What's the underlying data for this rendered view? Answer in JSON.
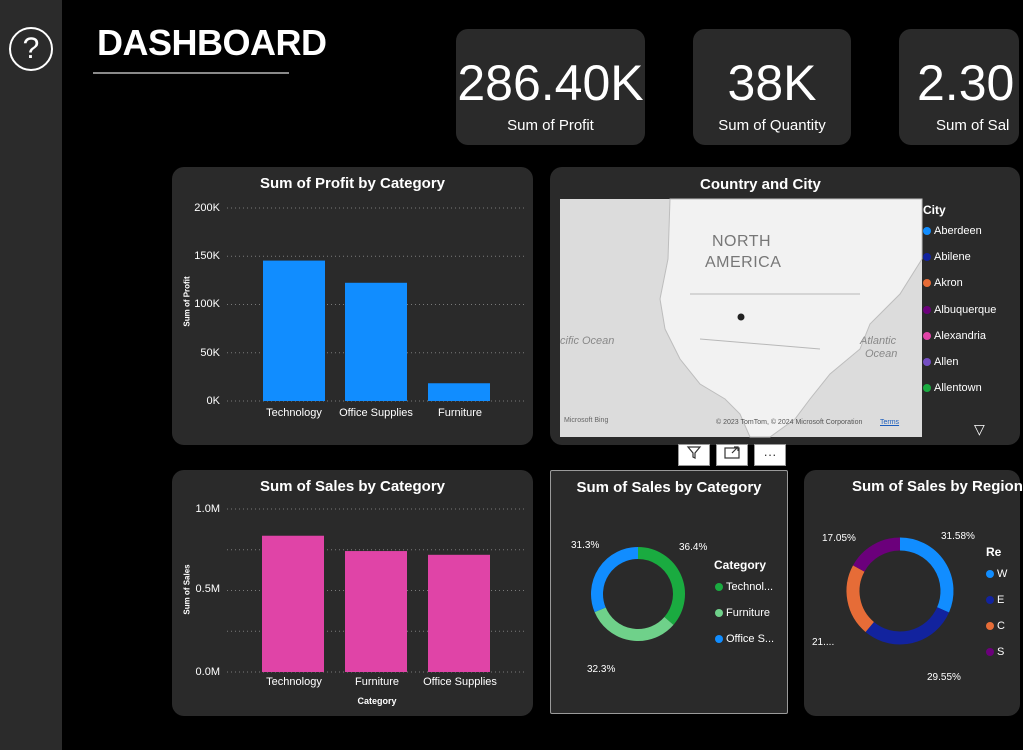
{
  "page": {
    "title": "DASHBOARD"
  },
  "help_icon": "question-mark-icon",
  "kpis": [
    {
      "value": "286.40K",
      "label": "Sum of Profit"
    },
    {
      "value": "38K",
      "label": "Sum of Quantity"
    },
    {
      "value": "2.30",
      "label": "Sum of Sal"
    }
  ],
  "profit_chart": {
    "title": "Sum of Profit by Category",
    "ylabel": "Sum of Profit",
    "ticks": [
      "200K",
      "150K",
      "100K",
      "50K",
      "0K"
    ],
    "chart_data": {
      "type": "bar",
      "categories": [
        "Technology",
        "Office Supplies",
        "Furniture"
      ],
      "values": [
        145500,
        122500,
        18400
      ],
      "ylabel": "Sum of Profit",
      "ylim": [
        0,
        200000
      ],
      "color": "#118DFF"
    }
  },
  "sales_chart": {
    "title": "Sum of Sales by Category",
    "ylabel": "Sum of Sales",
    "xlabel": "Category",
    "ticks": [
      "1.0M",
      "0.5M",
      "0.0M"
    ],
    "chart_data": {
      "type": "bar",
      "categories": [
        "Technology",
        "Furniture",
        "Office Supplies"
      ],
      "values": [
        836000,
        742000,
        719000
      ],
      "ylabel": "Sum of Sales",
      "xlabel": "Category",
      "ylim": [
        0,
        1000000
      ],
      "color": "#E044A7"
    }
  },
  "map_panel": {
    "title": "Country and City",
    "continent_line1": "NORTH",
    "continent_line2": "AMERICA",
    "ocean_left": "cific Ocean",
    "ocean_right_1": "Atlantic",
    "ocean_right_2": "Ocean",
    "bing": "Microsoft Bing",
    "copyright": "© 2023 TomTom, © 2024 Microsoft Corporation",
    "terms": "Terms",
    "legend_title": "City",
    "legend": [
      {
        "name": "Aberdeen",
        "color": "#118DFF"
      },
      {
        "name": "Abilene",
        "color": "#12239E"
      },
      {
        "name": "Akron",
        "color": "#E66C37"
      },
      {
        "name": "Albuquerque",
        "color": "#6B007B"
      },
      {
        "name": "Alexandria",
        "color": "#E044A7"
      },
      {
        "name": "Allen",
        "color": "#744EC2"
      },
      {
        "name": "Allentown",
        "color": "#1AAB40"
      }
    ]
  },
  "donut_category": {
    "title": "Sum of Sales by Category",
    "legend_title": "Category",
    "legend": [
      {
        "name": "Technol...",
        "color": "#1AAB40"
      },
      {
        "name": "Furniture",
        "color": "#6FD18A"
      },
      {
        "name": "Office S...",
        "color": "#118DFF"
      }
    ],
    "labels": [
      "36.4%",
      "32.3%",
      "31.3%"
    ],
    "chart_data": {
      "type": "pie",
      "categories": [
        "Technology",
        "Furniture",
        "Office Supplies"
      ],
      "values": [
        36.4,
        32.3,
        31.3
      ],
      "colors": [
        "#1AAB40",
        "#6FD18A",
        "#118DFF"
      ]
    }
  },
  "donut_region": {
    "title": "Sum of Sales by Region",
    "legend_title": "Re",
    "legend_initials": [
      "W",
      "E",
      "C",
      "S"
    ],
    "labels": [
      "31.58%",
      "29.55%",
      "21....",
      "17.05%"
    ],
    "chart_data": {
      "type": "pie",
      "values": [
        31.58,
        29.55,
        21.82,
        17.05
      ],
      "colors": [
        "#118DFF",
        "#12239E",
        "#E66C37",
        "#6B007B"
      ]
    }
  },
  "toolbar": {
    "filter_icon": "filter-icon",
    "focus_icon": "focus-mode-icon",
    "more_icon": "more-options-icon",
    "more_label": "···"
  }
}
